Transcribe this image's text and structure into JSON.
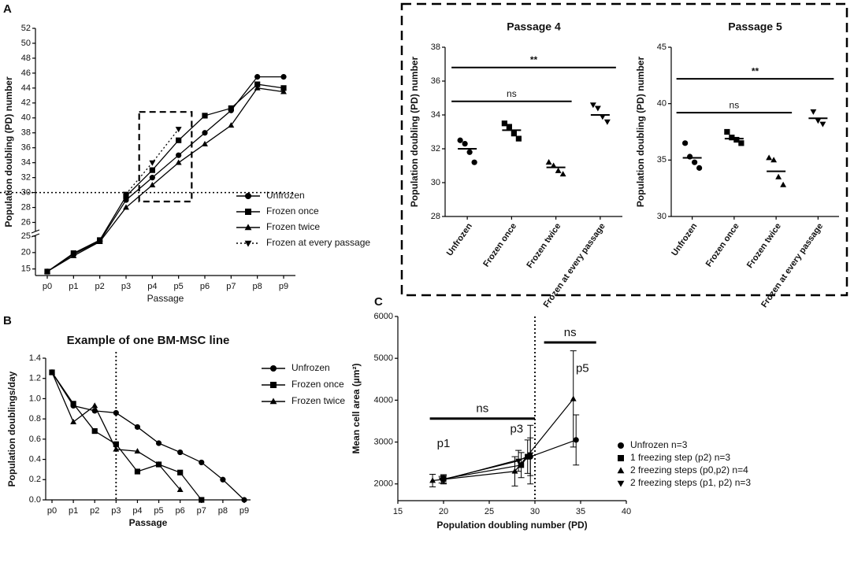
{
  "chart_data": [
    {
      "type": "line",
      "panel": "A",
      "x_label": "Passage",
      "y_label": "Population doubling (PD) number",
      "categories": [
        "p0",
        "p1",
        "p2",
        "p3",
        "p4",
        "p5",
        "p6",
        "p7",
        "p8",
        "p9"
      ],
      "ylim": [
        13,
        52
      ],
      "ybreak": 25,
      "yticks": [
        15,
        20,
        25,
        26,
        28,
        30,
        32,
        34,
        36,
        38,
        40,
        42,
        44,
        46,
        48,
        50,
        52
      ],
      "hline": 30,
      "highlight_ylim": [
        28.8,
        40.8
      ],
      "series": [
        {
          "name": "Unfrozen",
          "marker": "circle",
          "dash": false,
          "values": [
            14.2,
            19.5,
            23.5,
            29,
            32,
            35,
            38,
            41,
            45.5,
            45.5
          ]
        },
        {
          "name": "Frozen once",
          "marker": "square",
          "dash": false,
          "values": [
            14.2,
            19.8,
            23.8,
            29.5,
            33,
            37,
            40.3,
            41.3,
            44.5,
            44
          ]
        },
        {
          "name": "Frozen twice",
          "marker": "triangle",
          "dash": false,
          "values": [
            14.2,
            19,
            23.3,
            28,
            31,
            34,
            36.5,
            39,
            44,
            43.5
          ]
        },
        {
          "name": "Frozen at every passage",
          "marker": "triangle-down",
          "dash": true,
          "values": [
            null,
            null,
            null,
            29.8,
            34,
            38.5,
            null,
            null,
            null,
            null
          ]
        }
      ]
    },
    {
      "type": "dot",
      "title": "Passage 4",
      "y_label": "Population doubling (PD) number",
      "categories": [
        "Unfrozen",
        "Frozen once",
        "Frozen twice",
        "Frozen at every passage"
      ],
      "ylim": [
        28,
        38
      ],
      "yticks": [
        28,
        30,
        32,
        34,
        36,
        38
      ],
      "groups": [
        [
          32.5,
          32.3,
          31.8,
          31.2
        ],
        [
          33.5,
          33.3,
          32.9,
          32.6
        ],
        [
          31.2,
          31,
          30.7,
          30.5
        ],
        [
          34.6,
          34.4,
          33.9,
          33.6
        ]
      ],
      "means": [
        32,
        33.1,
        30.9,
        34
      ],
      "annotations": [
        {
          "text": "**",
          "from": 0,
          "to": 3,
          "y": 36.8
        },
        {
          "text": "ns",
          "from": 0,
          "to": 2,
          "y": 34.8
        }
      ]
    },
    {
      "type": "dot",
      "title": "Passage 5",
      "y_label": "Population doubling (PD) number",
      "categories": [
        "Unfrozen",
        "Frozen once",
        "Frozen twice",
        "Frozen at every passage"
      ],
      "ylim": [
        30,
        45
      ],
      "yticks": [
        30,
        35,
        40,
        45
      ],
      "groups": [
        [
          36.5,
          35.3,
          34.8,
          34.3
        ],
        [
          37.5,
          37,
          36.8,
          36.5
        ],
        [
          35.2,
          35,
          33.5,
          32.8
        ],
        [
          39.3,
          38.5,
          38.2
        ]
      ],
      "means": [
        35.2,
        36.9,
        34,
        38.7
      ],
      "annotations": [
        {
          "text": "**",
          "from": 0,
          "to": 3,
          "y": 42.2
        },
        {
          "text": "ns",
          "from": 0,
          "to": 2,
          "y": 39.2
        }
      ]
    },
    {
      "type": "line",
      "panel": "B",
      "title": "Example of one BM-MSC line",
      "x_label": "Passage",
      "y_label": "Population doublings/day",
      "categories": [
        "p0",
        "p1",
        "p2",
        "p3",
        "p4",
        "p5",
        "p6",
        "p7",
        "p8",
        "p9"
      ],
      "ylim": [
        0,
        1.4
      ],
      "yticks": [
        {
          "value": 0,
          "label": "0.0"
        },
        {
          "value": 0.2,
          "label": "0.2"
        },
        {
          "value": 0.4,
          "label": "0.4"
        },
        {
          "value": 0.6,
          "label": "0.6"
        },
        {
          "value": 0.8,
          "label": "0.8"
        },
        {
          "value": 1,
          "label": "1.0"
        },
        {
          "value": 1.2,
          "label": "1.2"
        },
        {
          "value": 1.4,
          "label": "1.4"
        }
      ],
      "vline": 3,
      "series": [
        {
          "name": "Unfrozen",
          "marker": "circle",
          "dash": false,
          "values": [
            1.26,
            0.93,
            0.88,
            0.86,
            0.72,
            0.56,
            0.47,
            0.37,
            0.2,
            0
          ]
        },
        {
          "name": "Frozen once",
          "marker": "square",
          "dash": false,
          "values": [
            1.26,
            0.95,
            0.68,
            0.55,
            0.28,
            0.35,
            0.27,
            0,
            null,
            null
          ]
        },
        {
          "name": "Frozen twice",
          "marker": "triangle",
          "dash": false,
          "values": [
            1.26,
            0.77,
            0.93,
            0.5,
            0.48,
            0.35,
            0.1,
            null,
            null,
            null
          ]
        }
      ]
    },
    {
      "type": "scatter",
      "panel": "C",
      "x_label": "Population doubling number (PD)",
      "y_label": "Mean cell area (µm²)",
      "xlim": [
        15,
        40
      ],
      "xticks": [
        15,
        20,
        25,
        30,
        35,
        40
      ],
      "ylim": [
        1600,
        6000
      ],
      "yticks": [
        2000,
        3000,
        4000,
        5000,
        6000
      ],
      "vline": 30,
      "series": [
        {
          "name": "Unfrozen n=3",
          "marker": "circle",
          "x": [
            20,
            29.5,
            34.5
          ],
          "values": [
            2100,
            2650,
            3050
          ],
          "errors": [
            100,
            450,
            600
          ]
        },
        {
          "name": "1 freezing step (p2) n=3",
          "marker": "square",
          "x": [
            20,
            28.5,
            29.2
          ],
          "values": [
            2120,
            2450,
            2650
          ],
          "errors": [
            100,
            300,
            400
          ]
        },
        {
          "name": "2 freezing steps (p0,p2) n=4",
          "marker": "triangle",
          "x": [
            18.8,
            27.8,
            34.2
          ],
          "values": [
            2080,
            2300,
            4030
          ],
          "errors": [
            150,
            350,
            1150
          ]
        },
        {
          "name": "2 freezing steps (p1, p2) n=3",
          "marker": "triangle-down",
          "x": [
            19.8,
            28.2,
            29.5
          ],
          "values": [
            2100,
            2550,
            2700
          ],
          "errors": [
            80,
            250,
            700
          ]
        }
      ],
      "annotations": [
        {
          "text": "ns",
          "x1": 18.5,
          "x2": 30,
          "y": 3560
        },
        {
          "text": "ns",
          "x1": 31,
          "x2": 36.7,
          "y": 5380
        },
        {
          "text": "p1",
          "x": 20,
          "y": 2950
        },
        {
          "text": "p3",
          "x": 28,
          "y": 3300
        },
        {
          "text": "p5",
          "x": 35.2,
          "y": 4750
        }
      ]
    }
  ]
}
